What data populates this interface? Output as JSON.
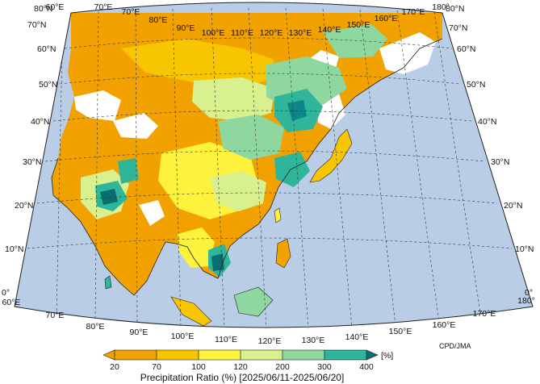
{
  "map": {
    "credit": "CPD/JMA",
    "colorbar": {
      "title": "Precipitation Ratio (%) [2025/06/11-2025/06/20]",
      "unit": "[%]",
      "ticks": [
        "20",
        "70",
        "100",
        "120",
        "200",
        "300",
        "400"
      ],
      "colors": [
        "#f1a100",
        "#f7c600",
        "#fff23c",
        "#d9f08e",
        "#8ed8a0",
        "#2fb59a",
        "#0c8686",
        "#0a6d70"
      ]
    },
    "lon_top": [
      "60°E",
      "70°E",
      "80°E",
      "90°E",
      "100°E",
      "110°E",
      "120°E",
      "130°E",
      "140°E",
      "150°E",
      "160°E",
      "170°E",
      "180°"
    ],
    "lon_bottom": [
      "60°E",
      "70°E",
      "80°E",
      "90°E",
      "100°E",
      "110°E",
      "120°E",
      "130°E",
      "140°E",
      "150°E",
      "160°E",
      "170°E",
      "180°"
    ],
    "lat_left": [
      "80°N",
      "70°N",
      "60°N",
      "50°N",
      "40°N",
      "30°N",
      "20°N",
      "10°N",
      "0°"
    ],
    "lat_right": [
      "80°N",
      "70°N",
      "60°N",
      "50°N",
      "40°N",
      "30°N",
      "20°N",
      "10°N",
      "0°"
    ],
    "colors": {
      "ocean": "#b9cde6",
      "no_data": "#ffffff",
      "outline": "#222222"
    }
  }
}
